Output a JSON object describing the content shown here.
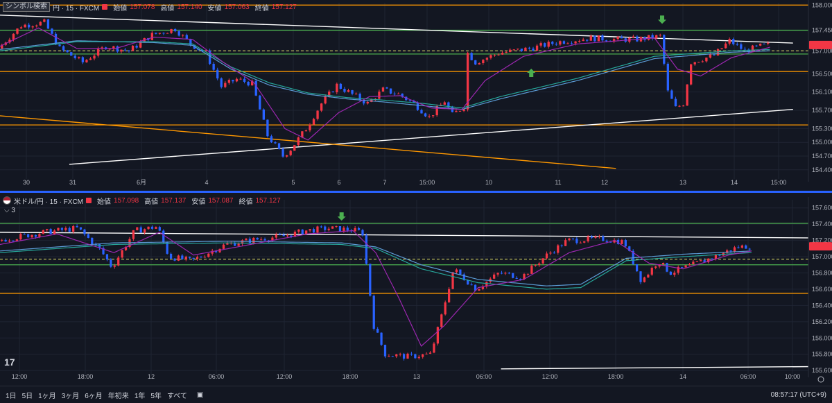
{
  "chart_data": [
    {
      "type": "candlestick",
      "header": {
        "search_label": "シンボル検索",
        "symbol_suffix": "円 · 15 · FXCM",
        "open_label": "始値",
        "open": "157.078",
        "high_label": "高値",
        "high": "157.140",
        "low_label": "安値",
        "low": "157.063",
        "close_label": "終値",
        "close": "157.127"
      },
      "ylim": [
        154.2,
        158.05
      ],
      "y_ticks": [
        "158.000",
        "157.450",
        "157.000",
        "156.500",
        "156.100",
        "155.700",
        "155.300",
        "155.000",
        "154.700",
        "154.400"
      ],
      "x_ticks": [
        "30",
        "31",
        "6月",
        "4",
        "5",
        "6",
        "7",
        "15:00",
        "10",
        "11",
        "12",
        "13",
        "14",
        "15:00"
      ],
      "h_lines": [
        {
          "y": 158.0,
          "color": "#ff9800"
        },
        {
          "y": 157.45,
          "color": "#4caf50"
        },
        {
          "y": 156.93,
          "color": "#4caf50"
        },
        {
          "y": 156.55,
          "color": "#ff9800"
        },
        {
          "y": 155.38,
          "color": "#ff9800"
        }
      ],
      "dashed_line": {
        "y": 157.0,
        "color": "#e8e86a"
      },
      "close_line": 157.127,
      "arrows": [
        {
          "t": 172,
          "dir": "down",
          "y": 157.62
        },
        {
          "t": 138,
          "dir": "up",
          "y": 156.58
        }
      ],
      "trend_lines": [
        {
          "t1": 0,
          "y1": 157.78,
          "t2": 206,
          "y2": 157.17,
          "color": "#ffffff"
        },
        {
          "t1": 18,
          "y1": 154.52,
          "t2": 206,
          "y2": 155.72,
          "color": "#ffffff"
        },
        {
          "t1": 0,
          "y1": 155.58,
          "t2": 160,
          "y2": 154.43,
          "color": "#ff9800"
        }
      ],
      "num_bars": 200,
      "price_path": [
        [
          0,
          157.05
        ],
        [
          6,
          157.55
        ],
        [
          12,
          157.62
        ],
        [
          16,
          157.05
        ],
        [
          22,
          156.75
        ],
        [
          28,
          157.1
        ],
        [
          34,
          157.0
        ],
        [
          40,
          157.35
        ],
        [
          46,
          157.48
        ],
        [
          50,
          157.15
        ],
        [
          54,
          156.95
        ],
        [
          58,
          156.22
        ],
        [
          62,
          156.38
        ],
        [
          66,
          156.28
        ],
        [
          70,
          155.15
        ],
        [
          74,
          154.7
        ],
        [
          76,
          154.85
        ],
        [
          80,
          155.3
        ],
        [
          84,
          155.85
        ],
        [
          88,
          156.25
        ],
        [
          92,
          156.05
        ],
        [
          96,
          155.85
        ],
        [
          100,
          156.15
        ],
        [
          104,
          156.05
        ],
        [
          108,
          155.85
        ],
        [
          112,
          155.55
        ],
        [
          116,
          155.9
        ],
        [
          118,
          155.6
        ],
        [
          121,
          155.78
        ],
        [
          122,
          156.95
        ],
        [
          124,
          156.75
        ],
        [
          130,
          156.95
        ],
        [
          138,
          157.05
        ],
        [
          146,
          157.2
        ],
        [
          154,
          157.28
        ],
        [
          160,
          157.25
        ],
        [
          166,
          157.25
        ],
        [
          172,
          157.32
        ],
        [
          174,
          156.1
        ],
        [
          176,
          155.75
        ],
        [
          178,
          155.85
        ],
        [
          180,
          156.75
        ],
        [
          186,
          156.9
        ],
        [
          190,
          157.22
        ],
        [
          194,
          157.0
        ],
        [
          198,
          157.1
        ],
        [
          200,
          157.13
        ]
      ],
      "ma_fast": [
        [
          0,
          157.1
        ],
        [
          10,
          157.5
        ],
        [
          20,
          157.05
        ],
        [
          30,
          157.05
        ],
        [
          40,
          157.3
        ],
        [
          50,
          157.25
        ],
        [
          58,
          156.75
        ],
        [
          66,
          156.3
        ],
        [
          74,
          155.3
        ],
        [
          80,
          155.05
        ],
        [
          88,
          155.65
        ],
        [
          96,
          156.0
        ],
        [
          104,
          156.02
        ],
        [
          112,
          155.75
        ],
        [
          120,
          155.72
        ],
        [
          126,
          156.35
        ],
        [
          136,
          156.88
        ],
        [
          150,
          157.15
        ],
        [
          170,
          157.28
        ],
        [
          176,
          156.6
        ],
        [
          182,
          156.45
        ],
        [
          190,
          156.85
        ],
        [
          200,
          157.08
        ]
      ],
      "ma_slow": [
        [
          0,
          157.0
        ],
        [
          20,
          157.2
        ],
        [
          40,
          157.2
        ],
        [
          50,
          157.15
        ],
        [
          60,
          156.65
        ],
        [
          70,
          156.3
        ],
        [
          80,
          156.08
        ],
        [
          90,
          155.98
        ],
        [
          100,
          155.92
        ],
        [
          110,
          155.85
        ],
        [
          120,
          155.75
        ],
        [
          130,
          156.0
        ],
        [
          150,
          156.4
        ],
        [
          170,
          156.88
        ],
        [
          190,
          157.0
        ],
        [
          200,
          157.03
        ]
      ],
      "ma_slow2": [
        [
          0,
          157.03
        ],
        [
          20,
          157.22
        ],
        [
          40,
          157.18
        ],
        [
          50,
          157.12
        ],
        [
          60,
          156.6
        ],
        [
          70,
          156.25
        ],
        [
          80,
          156.05
        ],
        [
          90,
          155.95
        ],
        [
          100,
          155.88
        ],
        [
          110,
          155.8
        ],
        [
          120,
          155.72
        ],
        [
          130,
          155.95
        ],
        [
          150,
          156.35
        ],
        [
          170,
          156.83
        ],
        [
          190,
          156.97
        ],
        [
          200,
          157.0
        ]
      ]
    },
    {
      "type": "candlestick",
      "header": {
        "symbol": "米ドル/円 · 15 · FXCM",
        "open_label": "始値",
        "open": "157.098",
        "high_label": "高値",
        "high": "157.137",
        "low_label": "安値",
        "low": "157.087",
        "close_label": "終値",
        "close": "157.127",
        "indicator_count": "3"
      },
      "ylim": [
        155.55,
        157.7
      ],
      "y_ticks": [
        "157.600",
        "157.400",
        "157.200",
        "157.000",
        "156.800",
        "156.600",
        "156.400",
        "156.200",
        "156.000",
        "155.800",
        "155.600"
      ],
      "x_ticks": [
        "12:00",
        "18:00",
        "12",
        "06:00",
        "12:00",
        "18:00",
        "13",
        "06:00",
        "12:00",
        "18:00",
        "14",
        "06:00",
        "10:00"
      ],
      "h_lines": [
        {
          "y": 157.41,
          "color": "#4caf50"
        },
        {
          "y": 156.9,
          "color": "#4caf50"
        },
        {
          "y": 156.55,
          "color": "#ff9800"
        }
      ],
      "dashed_line": {
        "y": 156.97,
        "color": "#e8e86a"
      },
      "close_line": 157.127,
      "arrows": [
        {
          "t": 60,
          "dir": "down",
          "y": 157.46
        }
      ],
      "trend_lines": [
        {
          "t1": 0,
          "y1": 157.3,
          "t2": 206,
          "y2": 157.2,
          "color": "#ffffff"
        },
        {
          "t1": 88,
          "y1": 155.62,
          "t2": 206,
          "y2": 155.68,
          "color": "#ffffff"
        }
      ],
      "num_bars": 200,
      "price_path": [
        [
          0,
          157.2
        ],
        [
          8,
          157.3
        ],
        [
          14,
          157.35
        ],
        [
          18,
          157.08
        ],
        [
          20,
          156.87
        ],
        [
          24,
          157.32
        ],
        [
          28,
          157.37
        ],
        [
          30,
          157.0
        ],
        [
          34,
          156.95
        ],
        [
          40,
          157.15
        ],
        [
          46,
          157.22
        ],
        [
          50,
          157.25
        ],
        [
          54,
          157.32
        ],
        [
          58,
          157.35
        ],
        [
          62,
          157.33
        ],
        [
          64,
          157.3
        ],
        [
          66,
          156.15
        ],
        [
          68,
          155.8
        ],
        [
          72,
          155.77
        ],
        [
          76,
          155.8
        ],
        [
          78,
          156.3
        ],
        [
          80,
          156.85
        ],
        [
          84,
          156.6
        ],
        [
          88,
          156.8
        ],
        [
          92,
          156.75
        ],
        [
          96,
          157.0
        ],
        [
          100,
          157.2
        ],
        [
          106,
          157.22
        ],
        [
          110,
          157.18
        ],
        [
          113,
          156.7
        ],
        [
          116,
          156.95
        ],
        [
          118,
          156.8
        ],
        [
          124,
          156.95
        ],
        [
          130,
          157.12
        ],
        [
          132,
          157.13
        ]
      ],
      "ma_fast": [
        [
          0,
          157.15
        ],
        [
          10,
          157.28
        ],
        [
          20,
          157.05
        ],
        [
          28,
          157.3
        ],
        [
          34,
          157.02
        ],
        [
          44,
          157.15
        ],
        [
          54,
          157.28
        ],
        [
          62,
          157.32
        ],
        [
          66,
          157.05
        ],
        [
          70,
          156.5
        ],
        [
          74,
          155.9
        ],
        [
          78,
          156.15
        ],
        [
          84,
          156.62
        ],
        [
          92,
          156.72
        ],
        [
          100,
          157.05
        ],
        [
          108,
          157.2
        ],
        [
          114,
          156.92
        ],
        [
          120,
          156.85
        ],
        [
          128,
          157.02
        ],
        [
          132,
          157.07
        ]
      ],
      "ma_slow": [
        [
          0,
          157.05
        ],
        [
          20,
          157.15
        ],
        [
          40,
          157.17
        ],
        [
          60,
          157.15
        ],
        [
          66,
          157.1
        ],
        [
          74,
          156.85
        ],
        [
          84,
          156.68
        ],
        [
          96,
          156.6
        ],
        [
          102,
          156.62
        ],
        [
          110,
          156.95
        ],
        [
          120,
          157.0
        ],
        [
          132,
          157.05
        ]
      ],
      "ma_slow2": [
        [
          0,
          157.07
        ],
        [
          20,
          157.17
        ],
        [
          40,
          157.19
        ],
        [
          60,
          157.17
        ],
        [
          66,
          157.12
        ],
        [
          74,
          156.9
        ],
        [
          84,
          156.72
        ],
        [
          96,
          156.64
        ],
        [
          102,
          156.66
        ],
        [
          110,
          156.98
        ],
        [
          120,
          157.03
        ],
        [
          132,
          157.07
        ]
      ]
    }
  ],
  "toolbar": {
    "ranges": [
      "1日",
      "5日",
      "1ヶ月",
      "3ヶ月",
      "6ヶ月",
      "年初来",
      "1年",
      "5年",
      "すべて"
    ],
    "time": "08:57:17 (UTC+9)",
    "logo": "17"
  },
  "colors": {
    "bg": "#131722",
    "grid": "#1f2433",
    "bull": "#f23645",
    "bear": "#2962ff",
    "ma_fast": "#9c27b0",
    "ma_slow": "#26a69a",
    "ma_slow2": "#5b9bd5",
    "axis_text": "#b2b5be"
  }
}
